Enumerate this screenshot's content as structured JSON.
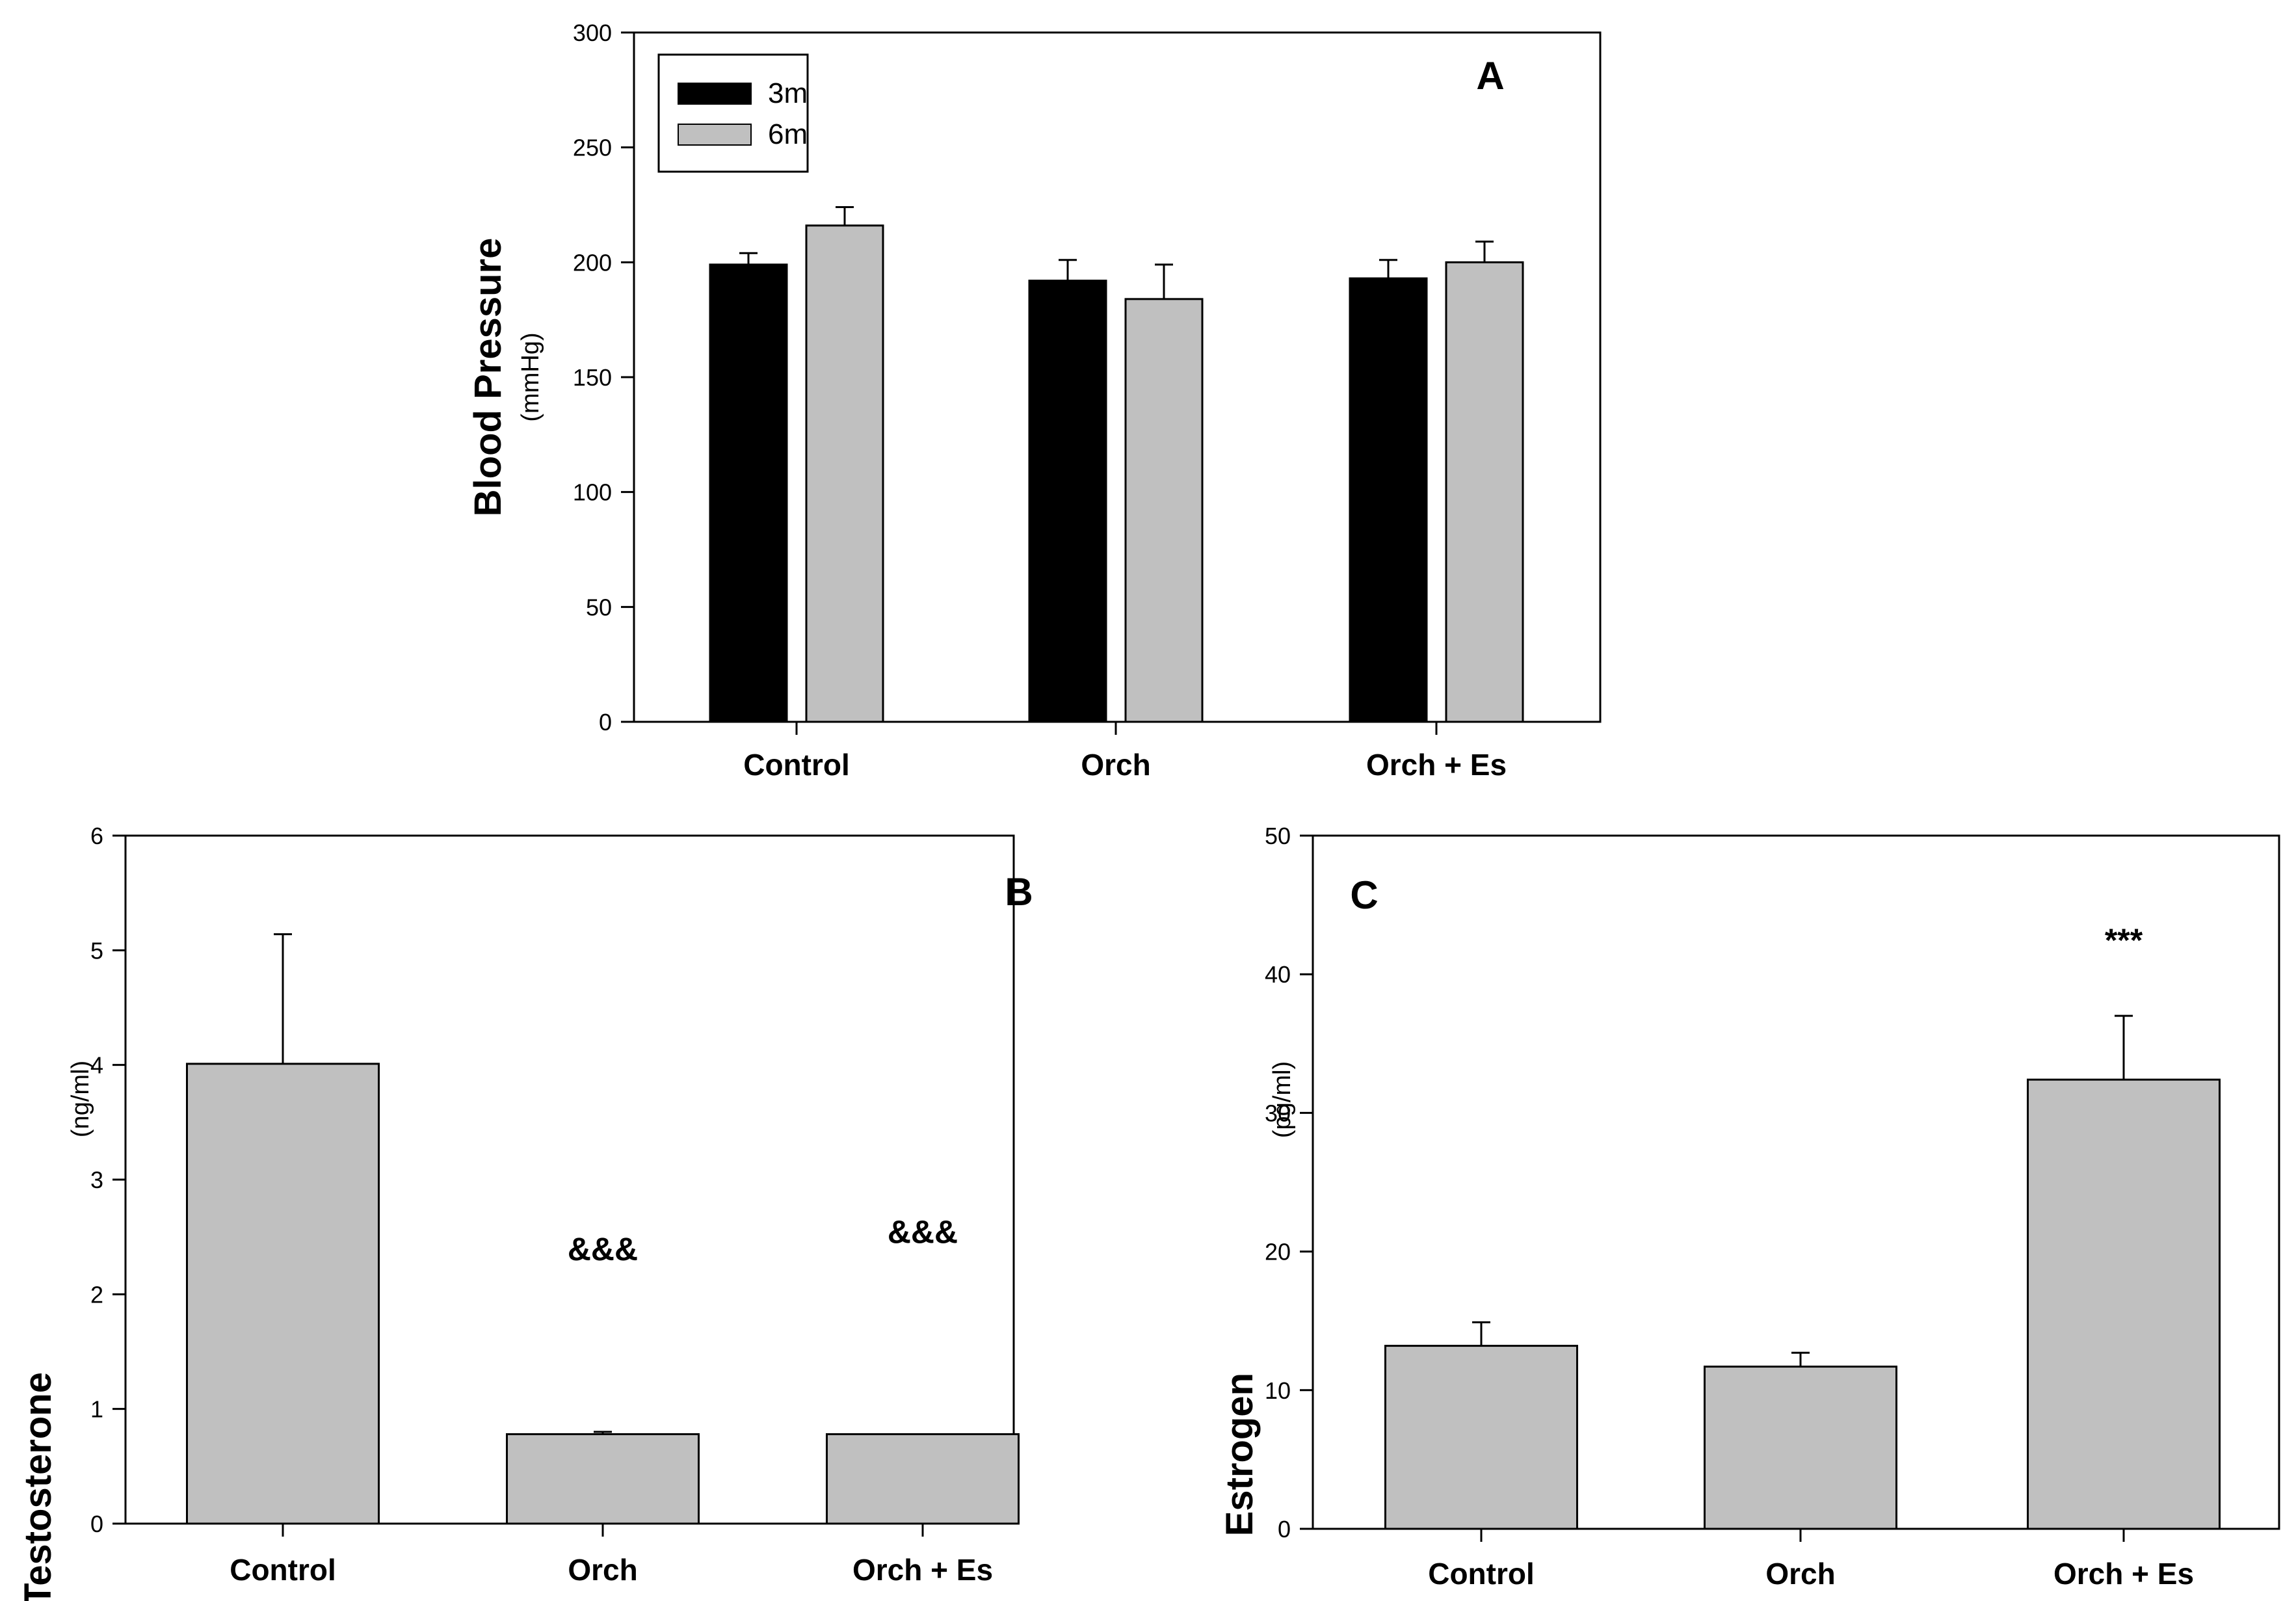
{
  "chart_data": [
    {
      "panel": "A",
      "type": "bar",
      "title": "",
      "ylabel": "Blood Pressure",
      "ylabel_unit": "(mmHg)",
      "ylim": [
        0,
        300
      ],
      "yticks": [
        0,
        50,
        100,
        150,
        200,
        250,
        300
      ],
      "categories": [
        "Control",
        "Orch",
        "Orch + Es"
      ],
      "legend_position": "top-left",
      "series": [
        {
          "name": "3m",
          "color": "#000000",
          "values": [
            199,
            192,
            193
          ],
          "errors": [
            5,
            9,
            8
          ]
        },
        {
          "name": "6m",
          "color": "#c0c0c0",
          "values": [
            216,
            184,
            200
          ],
          "errors": [
            8,
            15,
            9
          ]
        }
      ],
      "annotations": []
    },
    {
      "panel": "B",
      "type": "bar",
      "title": "",
      "ylabel": "Testosterone",
      "ylabel_unit": "(ng/ml)",
      "ylim": [
        0,
        6
      ],
      "yticks": [
        0,
        1,
        2,
        3,
        4,
        5,
        6
      ],
      "categories": [
        "Control",
        "Orch",
        "Orch + Es"
      ],
      "series": [
        {
          "name": "",
          "color": "#c0c0c0",
          "values": [
            4.01,
            0.78,
            0.78
          ],
          "errors": [
            1.13,
            0.02,
            0.0
          ]
        }
      ],
      "annotations": [
        {
          "category": "Orch",
          "text": "&&&",
          "y": 2.4
        },
        {
          "category": "Orch + Es",
          "text": "&&&",
          "y": 2.55
        }
      ]
    },
    {
      "panel": "C",
      "type": "bar",
      "title": "",
      "ylabel": "Estrogen",
      "ylabel_unit": "(pg/ml)",
      "ylim": [
        0,
        50
      ],
      "yticks": [
        0,
        10,
        20,
        30,
        40,
        50
      ],
      "categories": [
        "Control",
        "Orch",
        "Orch + Es"
      ],
      "series": [
        {
          "name": "",
          "color": "#c0c0c0",
          "values": [
            13.2,
            11.7,
            32.4
          ],
          "errors": [
            1.7,
            1.0,
            4.6
          ]
        }
      ],
      "annotations": [
        {
          "category": "Orch + Es",
          "text": "***",
          "y": 42.5
        }
      ]
    }
  ]
}
